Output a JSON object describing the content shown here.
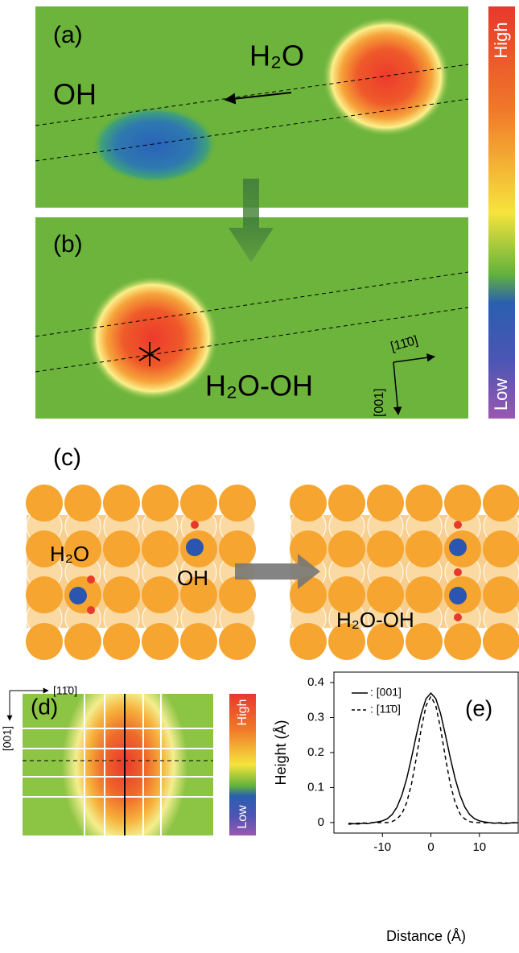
{
  "panel_a": {
    "label": "(a)",
    "left_species": "OH",
    "right_species": "H₂O"
  },
  "panel_b": {
    "label": "(b)",
    "species": "H₂O-OH",
    "directions": [
      "[11̄0]",
      "[001]"
    ]
  },
  "colorbar": {
    "high": "High",
    "low": "Low"
  },
  "panel_c": {
    "label": "(c)",
    "left_labels": [
      "H₂O",
      "OH"
    ],
    "right_label": "H₂O-OH"
  },
  "panel_d": {
    "label": "(d)",
    "directions": [
      "[11̄0]",
      "[001]"
    ],
    "high": "High",
    "low": "Low"
  },
  "chart_data": {
    "type": "line",
    "label": "(e)",
    "x_label": "Distance (Å)",
    "y_label": "Height (Å)",
    "x": [
      -17,
      -16,
      -15,
      -14,
      -13,
      -12,
      -11,
      -10,
      -9,
      -8,
      -7,
      -6,
      -5,
      -4,
      -3,
      -2,
      -1,
      0,
      1,
      2,
      3,
      4,
      5,
      6,
      7,
      8,
      9,
      10,
      11,
      12,
      13,
      14,
      15,
      16,
      17,
      18
    ],
    "series": [
      {
        "name": ": [001]",
        "color": "#000000",
        "dash": false,
        "values": [
          -0.005,
          -0.003,
          -0.004,
          -0.002,
          -0.003,
          0.0,
          0.002,
          0.005,
          0.011,
          0.023,
          0.044,
          0.078,
          0.125,
          0.185,
          0.25,
          0.311,
          0.354,
          0.37,
          0.354,
          0.311,
          0.25,
          0.185,
          0.125,
          0.078,
          0.044,
          0.023,
          0.011,
          0.005,
          0.002,
          0.0,
          -0.002,
          -0.001,
          -0.003,
          -0.002,
          0.0,
          -0.001
        ]
      },
      {
        "name": ": [11̄0]",
        "color": "#000000",
        "dash": true,
        "values": [
          -0.002,
          -0.003,
          -0.002,
          -0.001,
          -0.002,
          0.0,
          0.0,
          0.0,
          0.0,
          0.003,
          0.01,
          0.025,
          0.057,
          0.11,
          0.185,
          0.268,
          0.334,
          0.36,
          0.334,
          0.268,
          0.185,
          0.11,
          0.057,
          0.025,
          0.01,
          0.003,
          0.0,
          0.0,
          -0.001,
          0.0,
          -0.002,
          -0.001,
          0.0,
          -0.002,
          -0.001,
          0.0
        ]
      }
    ],
    "xlim": [
      -20,
      18
    ],
    "xticks": [
      -10,
      0,
      10
    ],
    "ylim": [
      -0.03,
      0.43
    ],
    "yticks": [
      0,
      0.1,
      0.2,
      0.3,
      0.4
    ]
  }
}
